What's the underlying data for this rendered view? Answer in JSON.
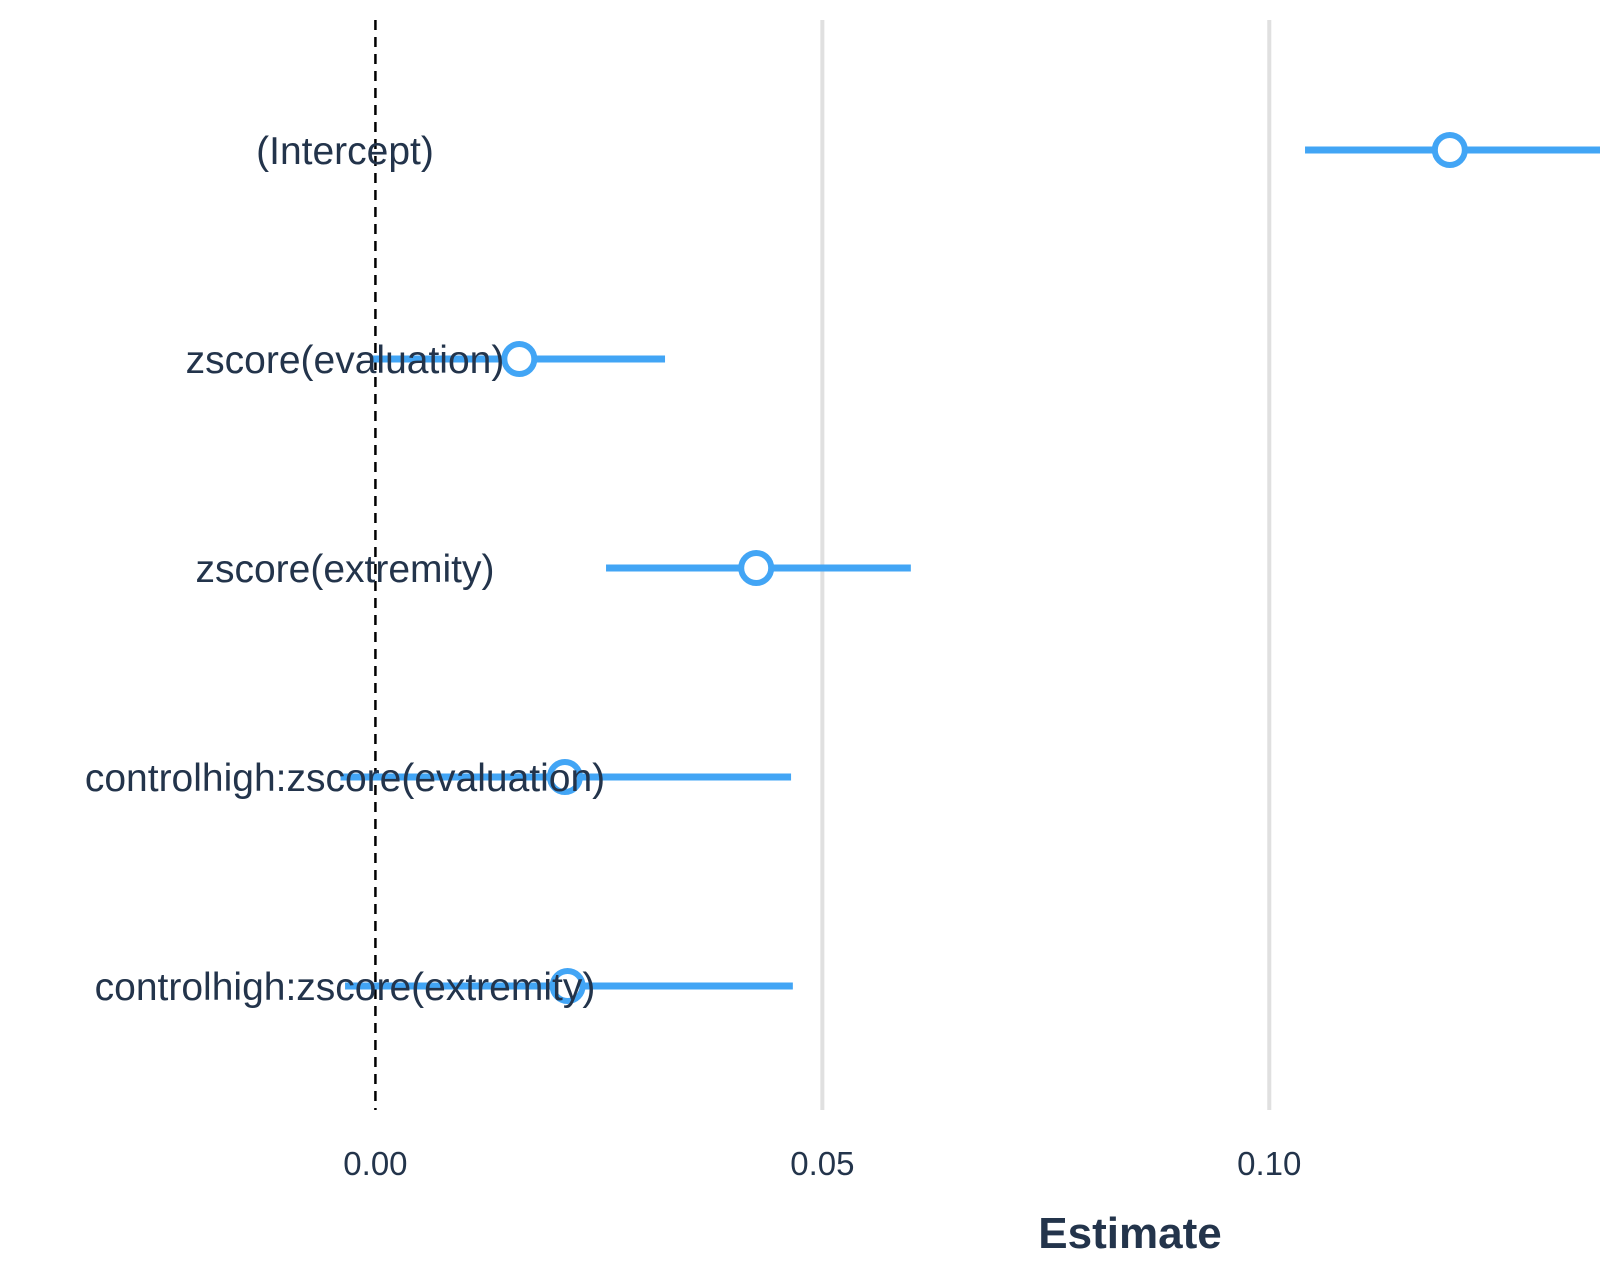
{
  "chart_data": {
    "type": "scatter",
    "subtype": "coefficient-plot",
    "title": "",
    "xlabel": "Estimate",
    "ylabel": "",
    "xlim": [
      -0.042,
      0.137
    ],
    "xticks": [
      0.0,
      0.05,
      0.1
    ],
    "xtick_labels": [
      "0.00",
      "0.05",
      "0.10"
    ],
    "reference_line": 0,
    "grid": "vertical",
    "color": "#42a5f5",
    "terms": [
      {
        "label": "(Intercept)",
        "estimate": 0.1202,
        "ci": [
          0.104,
          0.1373
        ]
      },
      {
        "label": "zscore(evaluation)",
        "estimate": 0.0161,
        "ci": [
          -0.0005,
          0.0324
        ]
      },
      {
        "label": "zscore(extremity)",
        "estimate": 0.0426,
        "ci": [
          0.0258,
          0.0599
        ]
      },
      {
        "label": "controlhigh:zscore(evaluation)",
        "estimate": 0.0212,
        "ci": [
          -0.0039,
          0.0465
        ]
      },
      {
        "label": "controlhigh:zscore(extremity)",
        "estimate": 0.0215,
        "ci": [
          -0.0034,
          0.0467
        ]
      }
    ]
  }
}
